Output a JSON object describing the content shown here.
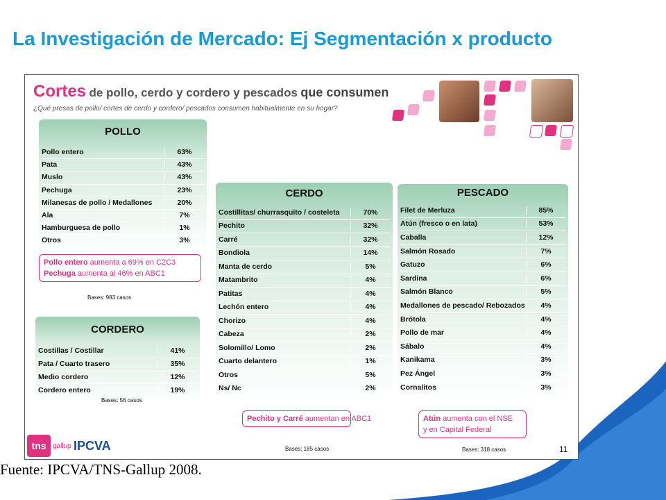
{
  "title": "La Investigación de Mercado: Ej Segmentación x producto",
  "slide": {
    "heading": {
      "lead": "Cortes",
      "middle": "de pollo, cerdo y cordero y pescados",
      "end": "que consumen"
    },
    "question": "¿Qué presas de pollo/ cortes de cerdo y cordero/ pescados consumen habitualmente en su hogar?",
    "tables": [
      {
        "title": "POLLO",
        "rows": [
          [
            "Pollo entero",
            "63%"
          ],
          [
            "Pata",
            "43%"
          ],
          [
            "Muslo",
            "43%"
          ],
          [
            "Pechuga",
            "23%"
          ],
          [
            "Milanesas de pollo / Medallones",
            "20%"
          ],
          [
            "Ala",
            "7%"
          ],
          [
            "Hamburguesa de pollo",
            "1%"
          ],
          [
            "Otros",
            "3%"
          ]
        ],
        "note": [
          {
            "highlight": "Pollo entero",
            "text": "aumenta a 69% en C2C3"
          },
          {
            "highlight": "Pechuga",
            "text": "aumenta al 46% en ABC1"
          }
        ],
        "bases": "Bases: 983 casos"
      },
      {
        "title": "CORDERO",
        "rows": [
          [
            "Costillas / Costillar",
            "41%"
          ],
          [
            "Pata / Cuarto trasero",
            "35%"
          ],
          [
            "Medio cordero",
            "12%"
          ],
          [
            "Cordero entero",
            "19%"
          ]
        ],
        "bases": "Bases: 56 casos"
      },
      {
        "title": "CERDO",
        "rows": [
          [
            "Costillitas/ churrasquito / costeleta",
            "70%"
          ],
          [
            "Pechito",
            "32%"
          ],
          [
            "Carré",
            "32%"
          ],
          [
            "Bondiola",
            "14%"
          ],
          [
            "Manta de cerdo",
            "5%"
          ],
          [
            "Matambrito",
            "4%"
          ],
          [
            "Patitas",
            "4%"
          ],
          [
            "Lechón entero",
            "4%"
          ],
          [
            "Chorizo",
            "4%"
          ],
          [
            "Cabeza",
            "2%"
          ],
          [
            "Solomillo/ Lomo",
            "2%"
          ],
          [
            "Cuarto delantero",
            "1%"
          ],
          [
            "Otros",
            "5%"
          ],
          [
            "Ns/ Nc",
            "2%"
          ]
        ],
        "note": [
          {
            "highlight": "Pechito y Carré",
            "text": "aumentan en ABC1"
          }
        ],
        "bases": "Bases: 185 casos"
      },
      {
        "title": "PESCADO",
        "rows": [
          [
            "Filet de Merluza",
            "85%"
          ],
          [
            "Atún (fresco o en lata)",
            "53%"
          ],
          [
            "Caballa",
            "12%"
          ],
          [
            "Salmón Rosado",
            "7%"
          ],
          [
            "Gatuzo",
            "6%"
          ],
          [
            "Sardina",
            "6%"
          ],
          [
            "Salmón Blanco",
            "5%"
          ],
          [
            "Medallones de pescado/ Rebozados",
            "4%"
          ],
          [
            "Brótola",
            "4%"
          ],
          [
            "Pollo de mar",
            "4%"
          ],
          [
            "Sábalo",
            "4%"
          ],
          [
            "Kanikama",
            "3%"
          ],
          [
            "Pez Ángel",
            "3%"
          ],
          [
            "Cornalitos",
            "3%"
          ]
        ],
        "note": [
          {
            "highlight": "Atún",
            "text": "aumenta con el NSE"
          },
          {
            "text": "y en Capital Federal"
          }
        ],
        "bases": "Bases: 318 casos"
      }
    ],
    "logos": {
      "tns": "tns",
      "gallup": "gallup",
      "ipcva": "IPCVA"
    },
    "page_number": "11"
  },
  "source": "Fuente: IPCVA/TNS-Gallup 2008."
}
